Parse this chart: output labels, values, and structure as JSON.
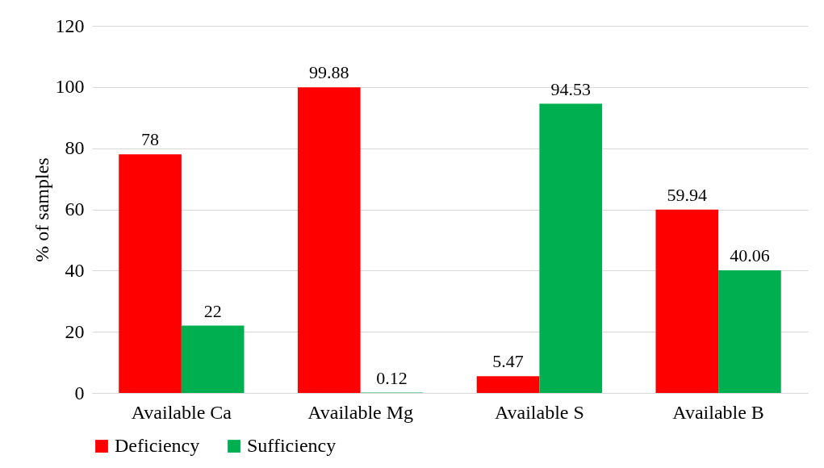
{
  "chart_data": {
    "type": "bar",
    "ylabel": "% of samples",
    "categories": [
      "Available Ca",
      "Available Mg",
      "Available S",
      "Available B"
    ],
    "series": [
      {
        "name": "Deficiency",
        "color": "#ff0000",
        "values": [
          78,
          99.88,
          5.47,
          59.94
        ]
      },
      {
        "name": "Sufficiency",
        "color": "#00b050",
        "values": [
          22,
          0.12,
          94.53,
          40.06
        ]
      }
    ],
    "ylim": [
      0,
      120
    ],
    "yticks": [
      0,
      20,
      40,
      60,
      80,
      100,
      120
    ],
    "grid": "y",
    "legend": "bottom",
    "data_labels": true
  }
}
